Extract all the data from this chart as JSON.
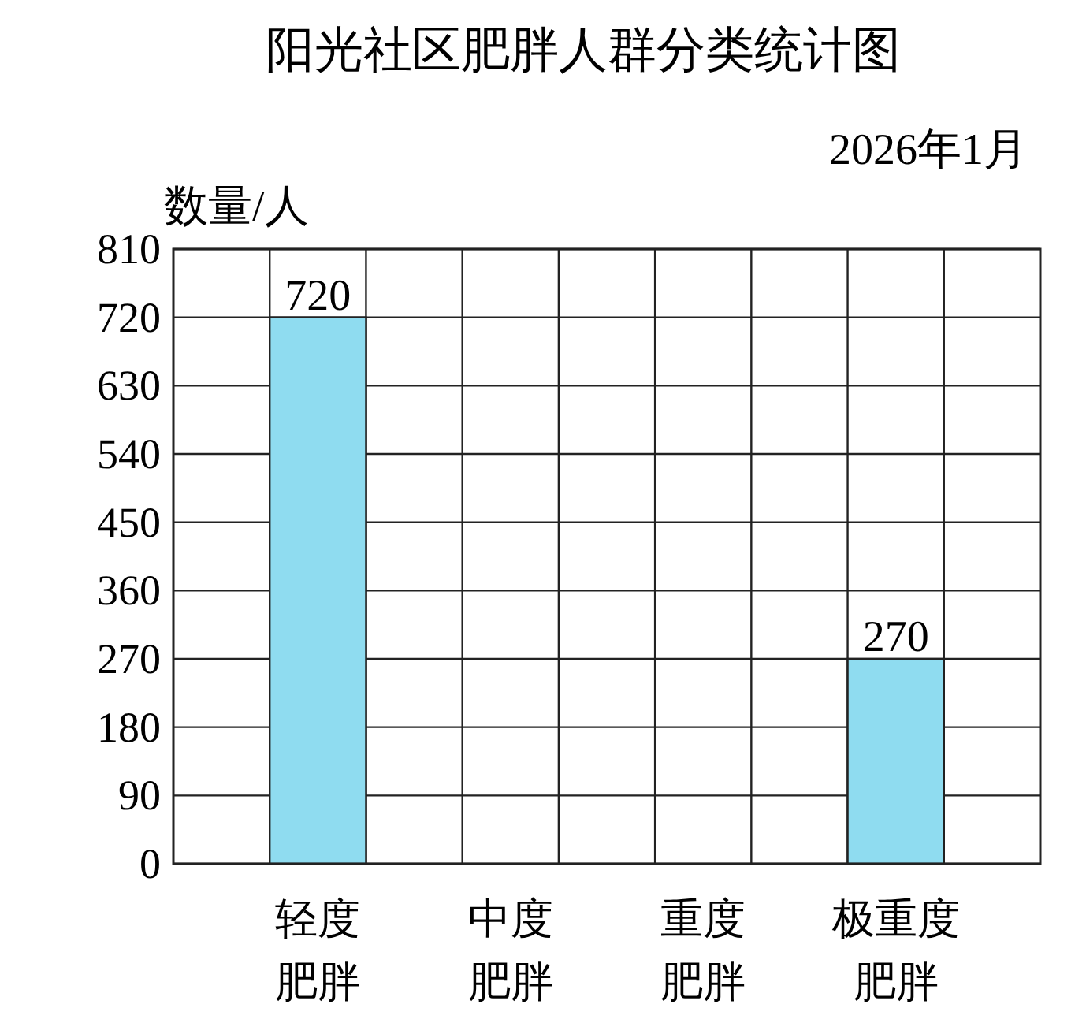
{
  "chart_data": {
    "type": "bar",
    "title": "阳光社区肥胖人群分类统计图",
    "subtitle": "2026年1月",
    "ylabel": "数量/人",
    "categories": [
      "轻度肥胖",
      "中度肥胖",
      "重度肥胖",
      "极重度肥胖"
    ],
    "values": [
      720,
      null,
      null,
      270
    ],
    "color": "#8fdcf0",
    "ylim": [
      0,
      810
    ],
    "yticks": [
      0,
      90,
      180,
      270,
      360,
      450,
      540,
      630,
      720,
      810
    ],
    "grid": true,
    "data_labels": true
  }
}
